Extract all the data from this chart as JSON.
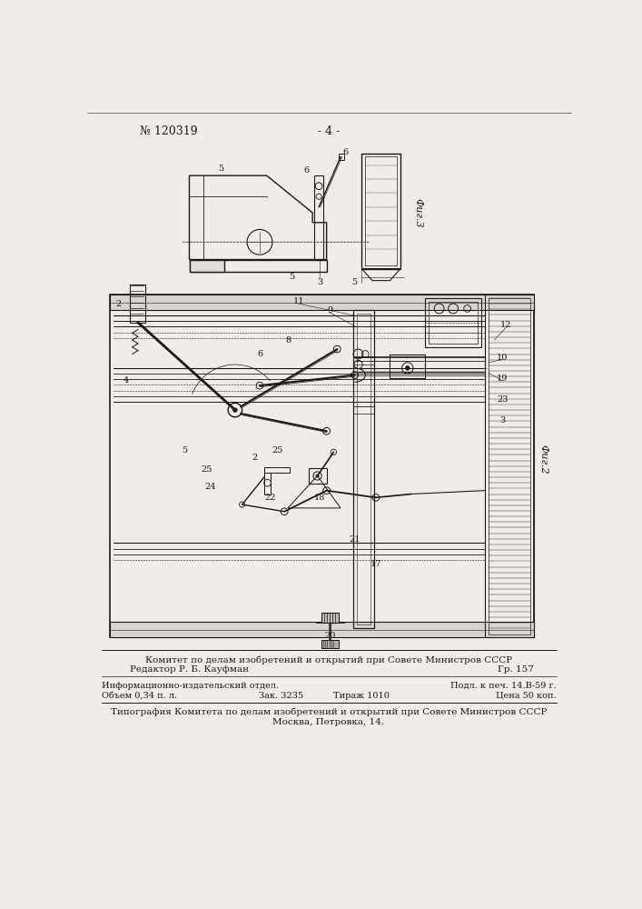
{
  "background_color": "#f0ede8",
  "page_number": "- 4 -",
  "patent_number": "№ 120319",
  "footer_line1": "Комитет по делам изобретений и открытий при Совете Министров СССР",
  "footer_line2_left": "Редактор Р. Б. Кауфман",
  "footer_line2_right": "Гр. 157",
  "footer_line3_left": "Информационно-издательский отдел.",
  "footer_line3_right": "Подл. к печ. 14.В-59 г.",
  "footer_line4_left": "Объем 0,34 п. л.",
  "footer_line4_mid": "Зак. 3235",
  "footer_line4_mid2": "Тираж 1010",
  "footer_line4_right": "Цена 50 коп.",
  "footer_line5": "Типография Комитета по делам изобретений и открытий при Совете Министров СССР",
  "footer_line6": "Москва, Петровка, 14.",
  "fig3_label": "Фиг.3",
  "fig2_label": "Фиг.2",
  "lc": "#1a1a1a",
  "tc": "#1a1a1a"
}
